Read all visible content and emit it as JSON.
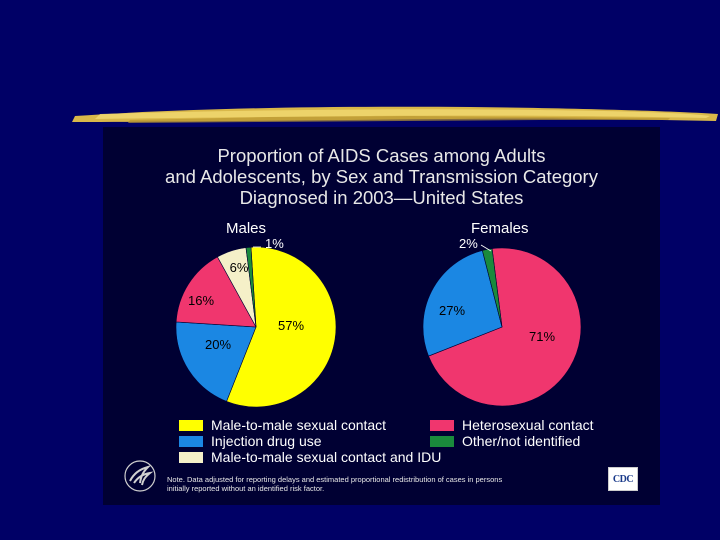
{
  "title_lines": [
    "Proportion of AIDS Cases among Adults",
    "and Adolescents, by Sex and Transmission Category",
    "Diagnosed in 2003—United States"
  ],
  "colors": {
    "background": "#000066",
    "panel": "#000033",
    "male_to_male": "#ffff00",
    "idu": "#1b87e3",
    "msm_idu": "#f5f0c8",
    "heterosexual": "#f0366e",
    "other": "#1a8a3c"
  },
  "chart_data": [
    {
      "type": "pie",
      "title": "Males",
      "slices": [
        {
          "label": "Male-to-male sexual contact",
          "value": 57,
          "display": "57%"
        },
        {
          "label": "Injection drug use",
          "value": 20,
          "display": "20%"
        },
        {
          "label": "Heterosexual contact",
          "value": 16,
          "display": "16%"
        },
        {
          "label": "Male-to-male sexual contact and IDU",
          "value": 6,
          "display": "6%"
        },
        {
          "label": "Other/not identified",
          "value": 1,
          "display": "1%"
        }
      ]
    },
    {
      "type": "pie",
      "title": "Females",
      "slices": [
        {
          "label": "Heterosexual contact",
          "value": 71,
          "display": "71%"
        },
        {
          "label": "Injection drug use",
          "value": 27,
          "display": "27%"
        },
        {
          "label": "Other/not identified",
          "value": 2,
          "display": "2%"
        }
      ]
    }
  ],
  "legend": [
    {
      "label": "Male-to-male sexual contact",
      "color": "#ffff00"
    },
    {
      "label": "Injection drug use",
      "color": "#1b87e3"
    },
    {
      "label": "Male-to-male sexual contact and IDU",
      "color": "#f5f0c8"
    },
    {
      "label": "Heterosexual contact",
      "color": "#f0366e"
    },
    {
      "label": "Other/not identified",
      "color": "#1a8a3c"
    }
  ],
  "note_lines": [
    "Note. Data adjusted for reporting delays and estimated proportional redistribution of cases in persons",
    "initially reported without an identified risk factor."
  ],
  "logo_text": "CDC"
}
